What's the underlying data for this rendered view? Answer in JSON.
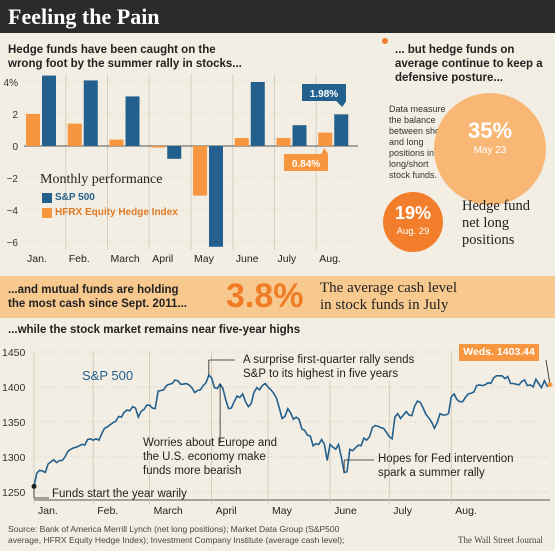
{
  "header": {
    "title": "Feeling the Pain"
  },
  "panel1": {
    "heading_line1": "Hedge funds have been caught on the",
    "heading_line2": "wrong foot by the summer rally in stocks...",
    "legend_title": "Monthly performance",
    "callout_sp": "1.98%",
    "callout_hfrx": "0.84%"
  },
  "panel2": {
    "heading_line1": "... but hedge funds on",
    "heading_line2": "average continue to keep a",
    "heading_line3": "defensive posture...",
    "note_lines": [
      "Data measure",
      "the balance",
      "between short",
      "and long",
      "positions in",
      "long/short",
      "stock funds."
    ],
    "big_circle_value": "35%",
    "big_circle_date": "May 23",
    "small_circle_value": "19%",
    "small_circle_date": "Aug. 29",
    "label_lines": [
      "Hedge fund",
      "net long",
      "positions"
    ]
  },
  "panel3": {
    "left_line1": "...and mutual funds are holding",
    "left_line2": "the most cash since Sept. 2011...",
    "big_value": "3.8%",
    "desc_line1": "The average cash level",
    "desc_line2": "in stock funds in July"
  },
  "panel4": {
    "heading": "...while the stock market remains near five-year highs",
    "callout": "Weds. 1403.44",
    "annot_rally_1": "A surprise first-quarter rally sends",
    "annot_rally_2": "S&P to its highest in five years",
    "annot_europe_1": "Worries about Europe and",
    "annot_europe_2": "the U.S. economy make",
    "annot_europe_3": "funds more bearish",
    "annot_fed_1": "Hopes for Fed intervention",
    "annot_fed_2": "spark a summer rally",
    "annot_start": "Funds start the year warily"
  },
  "footer": {
    "source_1": "Source: Bank of America Merrill Lynch (net long positions); Market Data Group (S&P500",
    "source_2": "average, HFRX Equity Hedge Index); Investment Company Institute (average cash level);",
    "credit": "The Wall Street Journal"
  },
  "colors": {
    "sp": "#23608e",
    "hfrx": "#f7963f",
    "band": "#f7c98e",
    "circle_light": "#f9b776",
    "circle_dark": "#f27d2a",
    "big_value": "#f07d26"
  },
  "chart_data": [
    {
      "type": "bar",
      "categories": [
        "Jan.",
        "Feb.",
        "March",
        "April",
        "May",
        "June",
        "July",
        "Aug."
      ],
      "series": [
        {
          "name": "S&P 500",
          "values": [
            4.4,
            4.1,
            3.1,
            -0.8,
            -6.3,
            4.0,
            1.3,
            1.98
          ]
        },
        {
          "name": "HFRX Equity Hedge Index",
          "values": [
            2.0,
            1.4,
            0.4,
            -0.1,
            -3.1,
            0.5,
            0.5,
            0.84
          ]
        }
      ],
      "yticks": [
        "4%",
        "2",
        "0",
        "−2",
        "−4",
        "−6"
      ],
      "ylim": [
        -6.5,
        4.5
      ]
    },
    {
      "type": "line",
      "months": [
        "Jan.",
        "Feb.",
        "March",
        "April",
        "May",
        "June",
        "July",
        "Aug."
      ],
      "yticks": [
        "1450",
        "1400",
        "1350",
        "1300",
        "1250"
      ],
      "ylim": [
        1250,
        1450
      ],
      "series": [
        {
          "name": "S&P 500",
          "values": [
            1258,
            1277,
            1281,
            1280,
            1278,
            1290,
            1293,
            1296,
            1292,
            1295,
            1295,
            1300,
            1308,
            1311,
            1313,
            1314,
            1316,
            1318,
            1317,
            1325,
            1326,
            1324,
            1326,
            1324,
            1333,
            1341,
            1343,
            1346,
            1349,
            1351,
            1358,
            1357,
            1364,
            1367,
            1366,
            1372,
            1370,
            1357,
            1365,
            1368,
            1374,
            1374,
            1370,
            1369,
            1394,
            1395,
            1396,
            1402,
            1404,
            1405,
            1410,
            1409,
            1404,
            1404,
            1405,
            1403,
            1399,
            1392,
            1395,
            1396,
            1402,
            1406,
            1417,
            1413,
            1399,
            1398,
            1404,
            1398,
            1382,
            1369,
            1370,
            1379,
            1387,
            1385,
            1390,
            1379,
            1372,
            1376,
            1392,
            1399,
            1396,
            1402,
            1405,
            1400,
            1396,
            1391,
            1384,
            1370,
            1355,
            1358,
            1369,
            1363,
            1354,
            1357,
            1354,
            1340,
            1338,
            1331,
            1330,
            1316,
            1319,
            1318,
            1325,
            1318,
            1295,
            1318,
            1314,
            1311,
            1318,
            1300,
            1278,
            1279,
            1311,
            1309,
            1313,
            1317,
            1316,
            1327,
            1324,
            1329,
            1342,
            1345,
            1344,
            1342,
            1341,
            1335,
            1329,
            1326,
            1357,
            1362,
            1355,
            1360,
            1365,
            1360,
            1359,
            1373,
            1380,
            1378,
            1370,
            1361,
            1356,
            1350,
            1341,
            1349,
            1362,
            1360,
            1360,
            1362,
            1386,
            1390,
            1382,
            1379,
            1379,
            1385,
            1390,
            1391,
            1393,
            1402,
            1403,
            1402,
            1403,
            1406,
            1405,
            1413,
            1416,
            1416,
            1416,
            1412,
            1415,
            1405,
            1405,
            1404,
            1403,
            1408,
            1410,
            1402,
            1403,
            1400,
            1411,
            1405,
            1399,
            1409,
            1401,
            1403.44
          ]
        }
      ]
    }
  ]
}
